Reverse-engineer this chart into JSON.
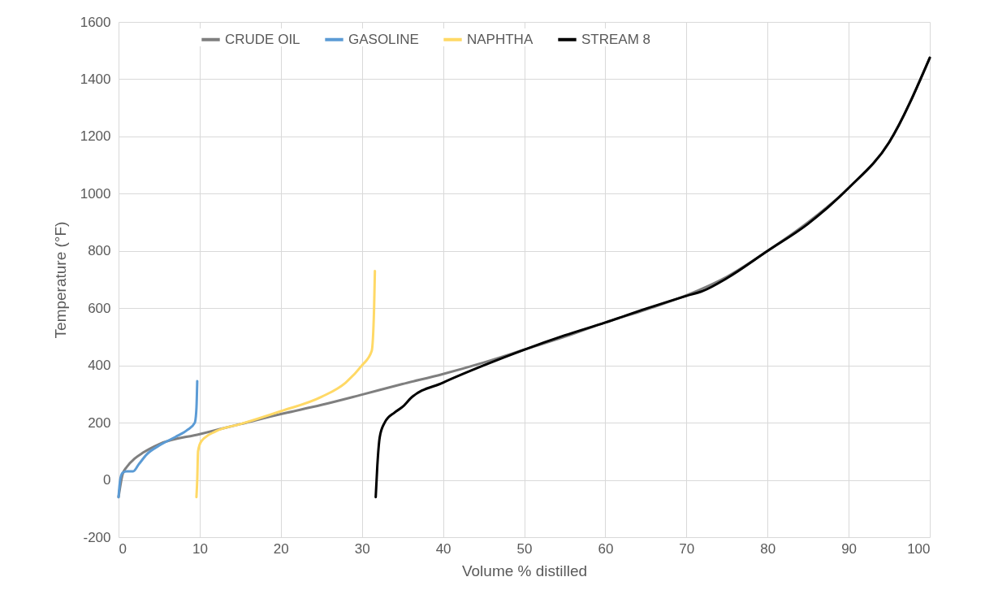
{
  "chart_data": {
    "type": "line",
    "xlabel": "Volume % distilled",
    "ylabel": "Temperature (°F)",
    "xlim": [
      0,
      100
    ],
    "ylim": [
      -200,
      1600
    ],
    "xticks": [
      0,
      10,
      20,
      30,
      40,
      50,
      60,
      70,
      80,
      90,
      100
    ],
    "yticks": [
      -200,
      0,
      200,
      400,
      600,
      800,
      1000,
      1200,
      1400,
      1600
    ],
    "grid": true,
    "legend": "top",
    "marker": "none",
    "line_style": "solid",
    "series": [
      {
        "name": "CRUDE OIL",
        "color": "#7f7f7f",
        "x": [
          0,
          0.5,
          1,
          2,
          3,
          5,
          10,
          15,
          20,
          25,
          30,
          35,
          40,
          45,
          50,
          55,
          60,
          65,
          70,
          75,
          80,
          85,
          90,
          95,
          100
        ],
        "values": [
          -60,
          20,
          45,
          75,
          95,
          125,
          160,
          195,
          230,
          262,
          298,
          335,
          370,
          410,
          455,
          500,
          550,
          595,
          645,
          710,
          800,
          900,
          1020,
          1180,
          1475
        ]
      },
      {
        "name": "GASOLINE",
        "color": "#5b9bd5",
        "x": [
          0,
          0.2,
          0.5,
          1,
          1.8,
          2.5,
          3.5,
          5,
          7,
          8.5,
          9.4,
          9.6,
          9.7
        ],
        "values": [
          -60,
          0,
          25,
          30,
          30,
          55,
          90,
          120,
          150,
          175,
          200,
          250,
          345
        ]
      },
      {
        "name": "NAPHTHA",
        "color": "#ffd966",
        "x": [
          9.6,
          9.7,
          9.8,
          10.2,
          12,
          15,
          20,
          25,
          28,
          30,
          31.2,
          31.5,
          31.6
        ],
        "values": [
          -60,
          0,
          100,
          135,
          170,
          195,
          240,
          290,
          340,
          400,
          450,
          600,
          730
        ]
      },
      {
        "name": "STREAM 8",
        "color": "#000000",
        "x": [
          31.7,
          31.9,
          32.2,
          32.8,
          34,
          35,
          36,
          40,
          45,
          50,
          55,
          60,
          65,
          70,
          72,
          75,
          80,
          85,
          90,
          95,
          100
        ],
        "values": [
          -60,
          50,
          150,
          200,
          235,
          255,
          285,
          340,
          400,
          455,
          505,
          550,
          598,
          643,
          660,
          705,
          800,
          895,
          1020,
          1180,
          1475
        ]
      }
    ]
  }
}
